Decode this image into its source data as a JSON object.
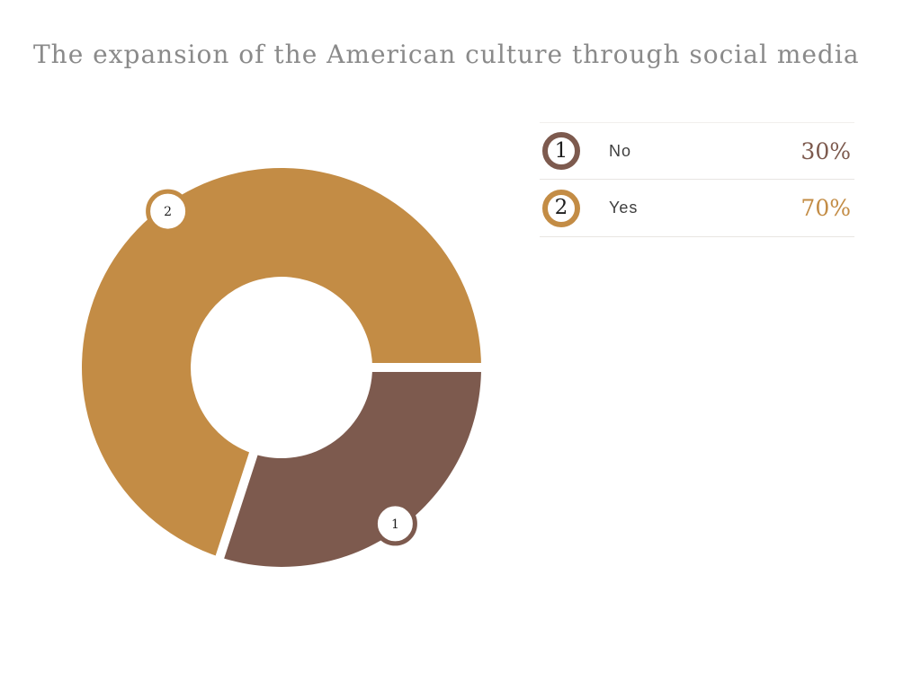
{
  "title": "The expansion of the American culture through social media",
  "chart_data": {
    "type": "pie",
    "subtype": "donut",
    "title": "The expansion of the American culture through social media",
    "categories": [
      "No",
      "Yes"
    ],
    "values": [
      30,
      70
    ],
    "value_labels": [
      "30%",
      "70%"
    ],
    "slice_numbers": [
      "1",
      "2"
    ],
    "colors": [
      "#7d5a4e",
      "#c38c45"
    ],
    "start_angle_deg": 0,
    "direction": "clockwise",
    "hole_ratio": 0.45,
    "legend_position": "right",
    "background": "#ffffff"
  },
  "legend": {
    "items": [
      {
        "index": "1",
        "label": "No",
        "value": "30%"
      },
      {
        "index": "2",
        "label": "Yes",
        "value": "70%"
      }
    ]
  },
  "style_colors": {
    "title_text": "#8a8a8a",
    "label_text": "#3e3e3e",
    "circle_number_text": "#1d1d1d",
    "divider": "#e8e5e2",
    "background": "#ffffff"
  }
}
